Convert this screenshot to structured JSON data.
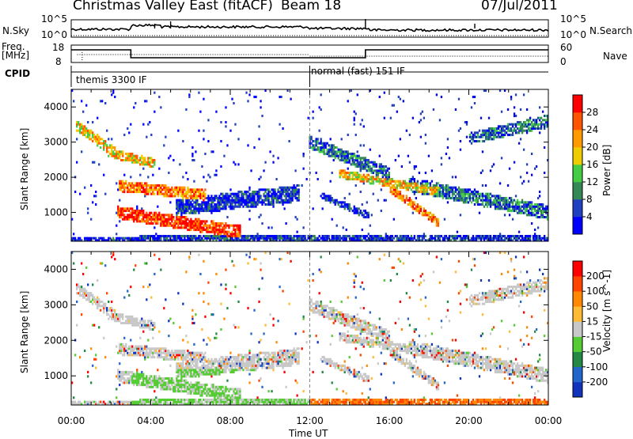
{
  "header": {
    "title": "Christmas Valley East (fitACF)",
    "beam": "Beam 18",
    "date": "07/Jul/2011"
  },
  "strips": {
    "nsky_label": "N.Sky",
    "nsky_ticks": [
      "10^5",
      "10^0"
    ],
    "nsearch_label": "N.Search",
    "nsearch_ticks": [
      "10^5",
      "10^0"
    ],
    "freq_label_line1": "Freq.",
    "freq_label_line2": "[MHz]",
    "freq_ticks": [
      "18",
      "8"
    ],
    "nave_label": "Nave",
    "nave_ticks": [
      "60",
      "0"
    ],
    "cpid_label": "CPID",
    "cpid_segments": [
      {
        "label": "themis 3300 IF",
        "start_hour": 0
      },
      {
        "label": "normal (fast) 151 IF",
        "start_hour": 12
      }
    ]
  },
  "chart_data": [
    {
      "type": "heatmap",
      "variable": "Power",
      "ylabel": "Slant Range [km]",
      "yticks": [
        1000,
        2000,
        3000,
        4000
      ],
      "ylim": [
        180,
        4500
      ],
      "xlim_hours": [
        0,
        24
      ],
      "colorbar_label": "Power [dB]",
      "colorbar_ticks": [
        "4",
        "8",
        "12",
        "16",
        "20",
        "24",
        "28"
      ],
      "colors": [
        "#0000ff",
        "#2040c0",
        "#338855",
        "#44cc44",
        "#eecc00",
        "#ff9900",
        "#ff5500",
        "#ff0000"
      ]
    },
    {
      "type": "heatmap",
      "variable": "Velocity",
      "ylabel": "Slant Range [km]",
      "yticks": [
        1000,
        2000,
        3000,
        4000
      ],
      "ylim": [
        180,
        4500
      ],
      "xlim_hours": [
        0,
        24
      ],
      "colorbar_label": "Velocity [m s^-1]",
      "colorbar_ticks": [
        "200",
        "100",
        "50",
        "15",
        "-15",
        "-50",
        "-100",
        "-200"
      ],
      "colors": [
        "#1133bb",
        "#2266cc",
        "#228844",
        "#55cc33",
        "#c8c8c8",
        "#ffbb33",
        "#ff8800",
        "#ff4400",
        "#ff0000"
      ]
    }
  ],
  "xaxis": {
    "ticks": [
      "00:00",
      "04:00",
      "08:00",
      "12:00",
      "16:00",
      "20:00",
      "00:00"
    ],
    "label": "Time UT"
  }
}
